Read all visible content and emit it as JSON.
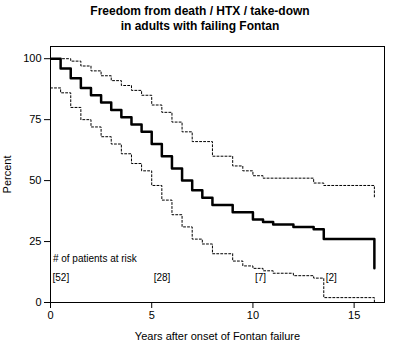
{
  "chart_data": {
    "type": "step",
    "title": "Freedom from death / HTX / take-down",
    "subtitle": "in adults with failing Fontan",
    "xlabel": "Years after onset of Fontan failure",
    "ylabel": "Percent",
    "xlim": [
      0,
      16.5
    ],
    "ylim": [
      0,
      105
    ],
    "xticks": [
      0,
      5,
      10,
      15
    ],
    "yticks": [
      0,
      25,
      50,
      75,
      100
    ],
    "series": [
      {
        "color": "#000000",
        "line_style": "dotted",
        "x": [
          0,
          0.5,
          1.0,
          1.5,
          2.0,
          2.5,
          3.0,
          3.5,
          4.0,
          4.5,
          5.0,
          5.5,
          6.0,
          6.5,
          7.0,
          8.0,
          9.0,
          9.5,
          10.0,
          10.5,
          13.0,
          13.5,
          16.0
        ],
        "values": [
          100,
          100,
          99,
          97,
          95,
          93,
          91,
          89,
          87,
          85,
          81,
          78,
          74,
          70,
          66,
          60,
          56,
          54,
          52,
          51,
          49,
          48,
          43
        ]
      },
      {
        "color": "#000000",
        "line_style": "dotted",
        "x": [
          0,
          0.5,
          1.0,
          1.5,
          2.0,
          2.5,
          3.0,
          3.5,
          4.0,
          4.5,
          5.0,
          5.5,
          6.0,
          6.5,
          7.0,
          7.5,
          8.0,
          9.0,
          9.5,
          10.0,
          10.5,
          11.0,
          12.0,
          13.0,
          13.5,
          16.0
        ],
        "values": [
          88,
          86,
          80,
          75,
          72,
          68,
          65,
          61,
          57,
          54,
          48,
          42,
          36,
          31,
          26,
          24,
          20,
          17,
          15,
          14,
          13,
          12,
          11,
          10,
          2,
          0
        ]
      },
      {
        "color": "#000000",
        "line_style": "solid",
        "x": [
          0,
          0.5,
          1.0,
          1.5,
          2.0,
          2.5,
          3.0,
          3.5,
          4.0,
          4.5,
          5.0,
          5.5,
          6.0,
          6.5,
          7.0,
          7.5,
          8.0,
          9.0,
          10.0,
          10.5,
          11.0,
          12.0,
          13.0,
          13.5,
          16.0
        ],
        "values": [
          100,
          96,
          92,
          88,
          85,
          82,
          79,
          76,
          73,
          70,
          65,
          60,
          55,
          50,
          46,
          43,
          40,
          37,
          34,
          33,
          32,
          31,
          30,
          26,
          14
        ]
      }
    ],
    "annotations": [
      {
        "text": "# of patients at risk",
        "x": 0.02,
        "y": 18
      },
      {
        "text": "[52]",
        "x": 0,
        "y": 10
      },
      {
        "text": "[28]",
        "x": 5,
        "y": 10
      },
      {
        "text": "[7]",
        "x": 10,
        "y": 10
      },
      {
        "text": "[2]",
        "x": 13.5,
        "y": 10
      }
    ]
  }
}
